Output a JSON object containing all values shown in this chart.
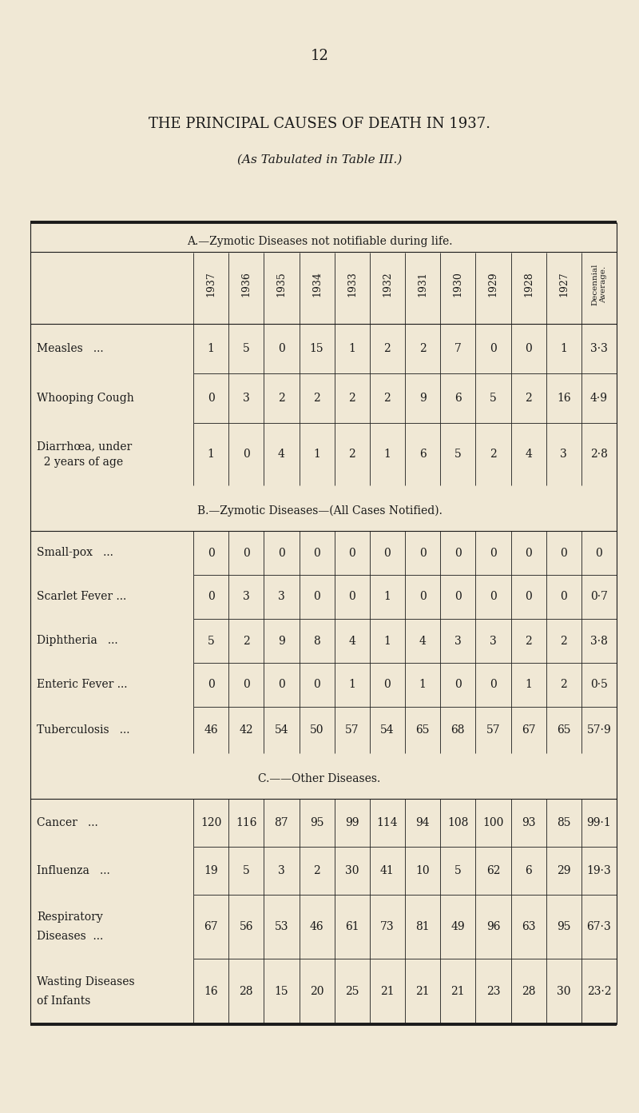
{
  "page_number": "12",
  "title": "THE PRINCIPAL CAUSES OF DEATH IN 1937.",
  "subtitle": "(As Tabulated in Table III.)",
  "background_color": "#f0e8d5",
  "text_color": "#1a1a1a",
  "years": [
    "1937",
    "1936",
    "1935",
    "1934",
    "1933",
    "1932",
    "1931",
    "1930",
    "1929",
    "1928",
    "1927"
  ],
  "decennial_label": "Decennial\nAverage.",
  "section_a_title": "A.—Zymotic Diseases not notifiable during life.",
  "section_b_title": "B.—Zymotic Diseases—(All Cases Notified).",
  "section_c_title": "C.——Other Diseases.",
  "section_a_rows": [
    {
      "disease_line1": "Measles",
      "disease_line2": "...",
      "values": [
        "1",
        "5",
        "0",
        "15",
        "1",
        "2",
        "2",
        "7",
        "0",
        "0",
        "1"
      ],
      "avg": "3·3"
    },
    {
      "disease_line1": "Whooping Cough",
      "disease_line2": "",
      "values": [
        "0",
        "3",
        "2",
        "2",
        "2",
        "2",
        "9",
        "6",
        "5",
        "2",
        "16"
      ],
      "avg": "4·9"
    },
    {
      "disease_line1": "Diarrhœa, under",
      "disease_line2": "  2 years of age",
      "values": [
        "1",
        "0",
        "4",
        "1",
        "2",
        "1",
        "6",
        "5",
        "2",
        "4",
        "3"
      ],
      "avg": "2·8"
    }
  ],
  "section_b_rows": [
    {
      "disease_line1": "Small-pox",
      "disease_line2": "...",
      "values": [
        "0",
        "0",
        "0",
        "0",
        "0",
        "0",
        "0",
        "0",
        "0",
        "0",
        "0"
      ],
      "avg": "0"
    },
    {
      "disease_line1": "Scarlet Fever ...",
      "disease_line2": "",
      "values": [
        "0",
        "3",
        "3",
        "0",
        "0",
        "1",
        "0",
        "0",
        "0",
        "0",
        "0"
      ],
      "avg": "0·7"
    },
    {
      "disease_line1": "Diphtheria",
      "disease_line2": "...",
      "values": [
        "5",
        "2",
        "9",
        "8",
        "4",
        "1",
        "4",
        "3",
        "3",
        "2",
        "2"
      ],
      "avg": "3·8"
    },
    {
      "disease_line1": "Enteric Fever ...",
      "disease_line2": "",
      "values": [
        "0",
        "0",
        "0",
        "0",
        "1",
        "0",
        "1",
        "0",
        "0",
        "1",
        "2"
      ],
      "avg": "0·5"
    },
    {
      "disease_line1": "Tuberculosis",
      "disease_line2": "...",
      "values": [
        "46",
        "42",
        "54",
        "50",
        "57",
        "54",
        "65",
        "68",
        "57",
        "67",
        "65"
      ],
      "avg": "57·9"
    }
  ],
  "section_c_rows": [
    {
      "disease_line1": "Cancer",
      "disease_line2": "...",
      "values": [
        "120",
        "116",
        "87",
        "95",
        "99",
        "114",
        "94",
        "108",
        "100",
        "93",
        "85"
      ],
      "avg": "99·1"
    },
    {
      "disease_line1": "Influenza",
      "disease_line2": "...",
      "values": [
        "19",
        "5",
        "3",
        "2",
        "30",
        "41",
        "10",
        "5",
        "62",
        "6",
        "29"
      ],
      "avg": "19·3"
    },
    {
      "disease_line1": "Respiratory",
      "disease_line2": "  Diseases  ...",
      "values": [
        "67",
        "56",
        "53",
        "46",
        "61",
        "73",
        "81",
        "49",
        "96",
        "63",
        "95"
      ],
      "avg": "67·3"
    },
    {
      "disease_line1": "Wasting Diseases",
      "disease_line2": "  of Infants",
      "values": [
        "16",
        "28",
        "15",
        "20",
        "25",
        "21",
        "21",
        "21",
        "23",
        "28",
        "30"
      ],
      "avg": "23·2"
    }
  ]
}
